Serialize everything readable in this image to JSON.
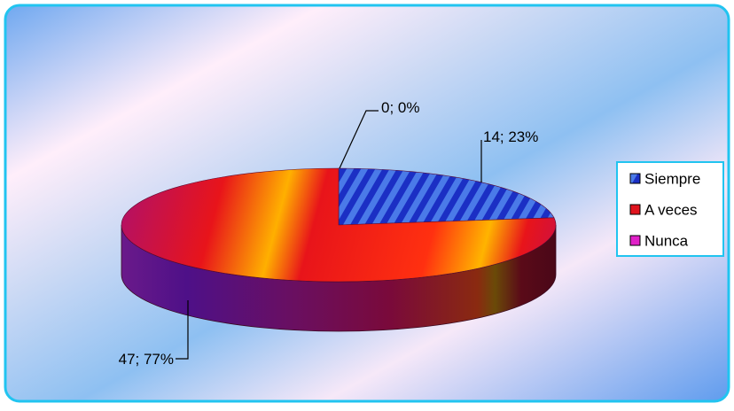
{
  "chart_data": {
    "type": "pie",
    "style": "3d",
    "categories": [
      "Siempre",
      "A veces",
      "Nunca"
    ],
    "values": [
      14,
      47,
      0
    ],
    "percentages": [
      23,
      77,
      0
    ],
    "data_labels": [
      "14; 23%",
      "47; 77%",
      "0; 0%"
    ],
    "legend": {
      "position": "right",
      "entries": [
        "Siempre",
        "A veces",
        "Nunca"
      ]
    },
    "colors": {
      "Siempre": "#1a33c8",
      "A veces": "#e0141e",
      "Nunca": "#e020c8",
      "border": "#21c4f0"
    }
  }
}
